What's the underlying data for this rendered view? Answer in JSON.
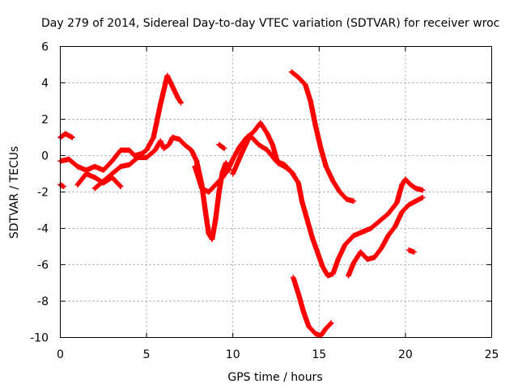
{
  "chart_data": {
    "type": "scatter",
    "title": "Day 279 of 2014, Sidereal Day-to-day VTEC variation (SDTVAR) for receiver wroc",
    "xlabel": "GPS time / hours",
    "ylabel": "SDTVAR / TECUs",
    "xlim": [
      0,
      25
    ],
    "ylim": [
      -10,
      6
    ],
    "xticks": [
      "0",
      "5",
      "10",
      "15",
      "20",
      "25"
    ],
    "yticks": [
      "6",
      "4",
      "2",
      "0",
      "-2",
      "-4",
      "-6",
      "-8",
      "-10"
    ],
    "grid": true,
    "marker": "plus",
    "color": "#ff0000",
    "series": [
      {
        "name": "trace-1",
        "points": [
          [
            0.0,
            1.0
          ],
          [
            0.3,
            1.2
          ],
          [
            0.7,
            1.0
          ]
        ]
      },
      {
        "name": "trace-2",
        "points": [
          [
            0.0,
            -0.3
          ],
          [
            0.5,
            -0.2
          ],
          [
            1.0,
            -0.6
          ],
          [
            1.5,
            -0.8
          ],
          [
            2.0,
            -0.6
          ],
          [
            2.5,
            -0.8
          ],
          [
            3.0,
            -0.3
          ],
          [
            3.5,
            0.3
          ],
          [
            4.0,
            0.3
          ],
          [
            4.3,
            0.0
          ],
          [
            4.7,
            0.1
          ],
          [
            5.0,
            0.3
          ],
          [
            5.4,
            1.0
          ],
          [
            5.8,
            2.8
          ],
          [
            6.2,
            4.4
          ],
          [
            6.5,
            3.8
          ],
          [
            6.8,
            3.2
          ],
          [
            7.0,
            2.9
          ]
        ]
      },
      {
        "name": "trace-3",
        "points": [
          [
            0.0,
            -1.6
          ],
          [
            0.2,
            -1.7
          ]
        ]
      },
      {
        "name": "trace-4",
        "points": [
          [
            1.0,
            -1.6
          ],
          [
            1.5,
            -1.0
          ],
          [
            2.0,
            -1.2
          ],
          [
            2.5,
            -1.5
          ],
          [
            3.0,
            -1.2
          ],
          [
            3.5,
            -1.7
          ]
        ]
      },
      {
        "name": "trace-5",
        "points": [
          [
            2.0,
            -1.8
          ],
          [
            2.5,
            -1.4
          ],
          [
            3.0,
            -1.0
          ],
          [
            3.5,
            -0.6
          ],
          [
            4.0,
            -0.5
          ],
          [
            4.5,
            -0.1
          ],
          [
            5.0,
            -0.1
          ],
          [
            5.5,
            0.3
          ],
          [
            5.8,
            0.8
          ],
          [
            6.0,
            0.4
          ],
          [
            6.3,
            0.6
          ],
          [
            6.5,
            1.0
          ],
          [
            6.9,
            0.9
          ],
          [
            7.2,
            0.6
          ],
          [
            7.6,
            0.3
          ],
          [
            7.9,
            -0.3
          ],
          [
            8.2,
            -1.6
          ],
          [
            8.4,
            -3.0
          ],
          [
            8.6,
            -4.3
          ],
          [
            8.8,
            -4.6
          ],
          [
            9.0,
            -3.5
          ],
          [
            9.2,
            -2.0
          ],
          [
            9.4,
            -0.9
          ],
          [
            9.6,
            -0.4
          ],
          [
            9.8,
            -0.8
          ]
        ]
      },
      {
        "name": "trace-6",
        "points": [
          [
            7.8,
            -0.6
          ],
          [
            8.0,
            -1.2
          ],
          [
            8.2,
            -1.8
          ],
          [
            8.6,
            -2.0
          ],
          [
            9.0,
            -1.6
          ],
          [
            9.4,
            -1.2
          ],
          [
            9.7,
            -0.8
          ],
          [
            10.0,
            -0.2
          ],
          [
            10.4,
            0.5
          ],
          [
            10.8,
            1.0
          ],
          [
            11.2,
            1.3
          ],
          [
            11.6,
            1.8
          ],
          [
            12.0,
            1.2
          ],
          [
            12.3,
            0.6
          ],
          [
            12.6,
            -0.4
          ],
          [
            13.0,
            -0.6
          ],
          [
            13.4,
            -0.9
          ],
          [
            13.8,
            -1.5
          ],
          [
            14.0,
            -2.5
          ],
          [
            14.3,
            -3.5
          ],
          [
            14.6,
            -4.5
          ],
          [
            14.9,
            -5.3
          ],
          [
            15.2,
            -6.1
          ],
          [
            15.5,
            -6.6
          ],
          [
            15.8,
            -6.5
          ],
          [
            16.1,
            -5.7
          ],
          [
            16.5,
            -4.9
          ],
          [
            17.0,
            -4.4
          ],
          [
            17.5,
            -4.2
          ],
          [
            18.0,
            -4.0
          ],
          [
            18.5,
            -3.6
          ],
          [
            19.0,
            -3.2
          ],
          [
            19.5,
            -2.6
          ],
          [
            19.8,
            -1.6
          ],
          [
            20.0,
            -1.3
          ],
          [
            20.3,
            -1.6
          ],
          [
            20.6,
            -1.8
          ],
          [
            21.0,
            -1.9
          ]
        ]
      },
      {
        "name": "trace-7",
        "points": [
          [
            10.0,
            -1.0
          ],
          [
            10.5,
            0.1
          ],
          [
            11.0,
            1.1
          ],
          [
            11.5,
            0.6
          ],
          [
            12.0,
            0.3
          ],
          [
            12.5,
            -0.3
          ],
          [
            13.0,
            -0.5
          ],
          [
            13.5,
            -1.0
          ]
        ]
      },
      {
        "name": "trace-8",
        "points": [
          [
            9.2,
            0.6
          ],
          [
            9.5,
            0.4
          ]
        ]
      },
      {
        "name": "trace-9",
        "points": [
          [
            13.4,
            4.6
          ],
          [
            13.8,
            4.3
          ],
          [
            14.2,
            3.9
          ],
          [
            14.5,
            3.0
          ],
          [
            14.8,
            1.6
          ],
          [
            15.1,
            0.4
          ],
          [
            15.4,
            -0.6
          ],
          [
            15.8,
            -1.4
          ],
          [
            16.2,
            -2.0
          ],
          [
            16.6,
            -2.4
          ],
          [
            17.0,
            -2.5
          ]
        ]
      },
      {
        "name": "trace-10",
        "points": [
          [
            13.5,
            -6.7
          ],
          [
            13.8,
            -7.6
          ],
          [
            14.1,
            -8.6
          ],
          [
            14.4,
            -9.4
          ],
          [
            14.8,
            -9.8
          ],
          [
            15.1,
            -9.9
          ],
          [
            15.4,
            -9.5
          ],
          [
            15.7,
            -9.2
          ]
        ]
      },
      {
        "name": "trace-11",
        "points": [
          [
            16.7,
            -6.6
          ],
          [
            17.0,
            -5.9
          ],
          [
            17.4,
            -5.3
          ],
          [
            17.8,
            -5.7
          ],
          [
            18.2,
            -5.6
          ],
          [
            18.6,
            -5.1
          ],
          [
            19.0,
            -4.4
          ],
          [
            19.4,
            -3.9
          ],
          [
            19.8,
            -3.1
          ],
          [
            20.2,
            -2.7
          ],
          [
            20.6,
            -2.5
          ],
          [
            21.0,
            -2.3
          ]
        ]
      },
      {
        "name": "trace-12",
        "points": [
          [
            20.2,
            -5.2
          ],
          [
            20.5,
            -5.3
          ]
        ]
      }
    ]
  }
}
